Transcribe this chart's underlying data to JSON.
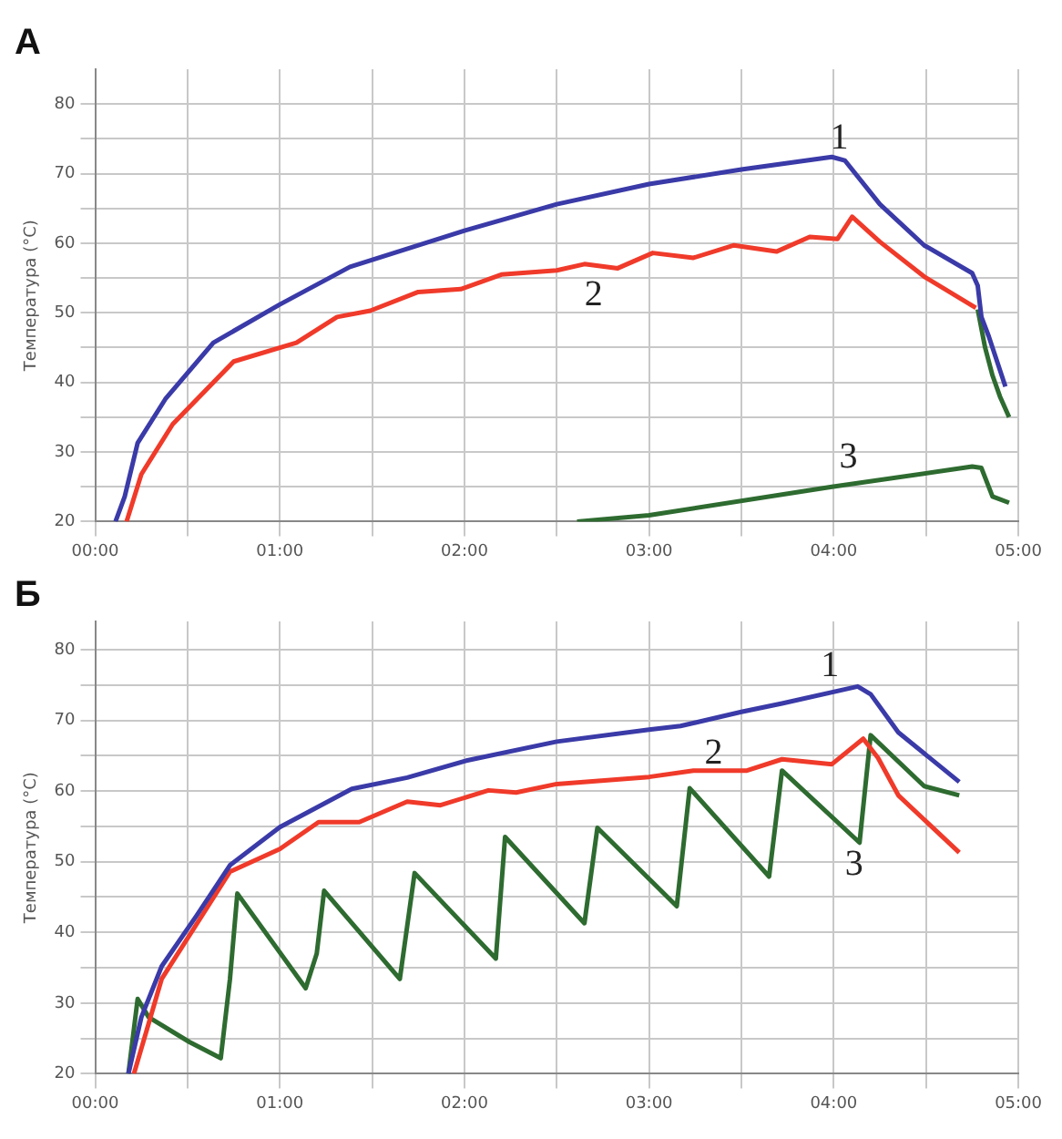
{
  "chart_data": [
    {
      "type": "line",
      "title": "А",
      "ylabel": "Температура (°C)",
      "xlim": [
        0,
        5
      ],
      "ylim": [
        20,
        85
      ],
      "xticks": [
        {
          "value": 0,
          "label": "00:00"
        },
        {
          "value": 0.5,
          "label": null
        },
        {
          "value": 1,
          "label": "01:00"
        },
        {
          "value": 1.5,
          "label": null
        },
        {
          "value": 2,
          "label": "02:00"
        },
        {
          "value": 2.5,
          "label": null
        },
        {
          "value": 3,
          "label": "03:00"
        },
        {
          "value": 3.5,
          "label": null
        },
        {
          "value": 4,
          "label": "04:00"
        },
        {
          "value": 4.5,
          "label": null
        },
        {
          "value": 5,
          "label": "05:00"
        }
      ],
      "yticks": [
        20,
        {
          "value": 25,
          "label": null
        },
        30,
        {
          "value": 35,
          "label": null
        },
        40,
        {
          "value": 45,
          "label": null
        },
        50,
        {
          "value": 55,
          "label": null
        },
        60,
        {
          "value": 65,
          "label": null
        },
        70,
        {
          "value": 75,
          "label": null
        },
        80
      ],
      "grid": true,
      "legend": false,
      "series": [
        {
          "name": "1",
          "color": "#3a3aa8",
          "x": [
            0.11,
            0.16,
            0.23,
            0.38,
            0.64,
            1.0,
            1.38,
            2.0,
            2.5,
            3.0,
            3.5,
            3.99,
            4.06,
            4.25,
            4.49,
            4.75,
            4.78,
            4.8,
            4.84,
            4.93
          ],
          "values": [
            20,
            23.6,
            31.3,
            37.6,
            45.7,
            51.2,
            56.6,
            61.8,
            65.6,
            68.5,
            70.6,
            72.4,
            71.9,
            65.6,
            59.7,
            55.7,
            53.9,
            49.4,
            46.6,
            39.4
          ]
        },
        {
          "name": "2",
          "color": "#f03a2a",
          "x": [
            0.17,
            0.25,
            0.42,
            0.75,
            1.09,
            1.31,
            1.49,
            1.75,
            1.98,
            2.2,
            2.5,
            2.65,
            2.83,
            3.02,
            3.24,
            3.46,
            3.69,
            3.87,
            4.02,
            4.1,
            4.25,
            4.49,
            4.77
          ],
          "values": [
            20,
            26.8,
            34,
            43,
            45.7,
            49.4,
            50.3,
            53,
            53.4,
            55.5,
            56.1,
            57,
            56.4,
            58.6,
            57.9,
            59.7,
            58.8,
            60.9,
            60.6,
            63.8,
            60.2,
            55.2,
            50.7
          ]
        },
        {
          "name": "3",
          "color": "#2e6b30",
          "x": [
            2.61,
            3.0,
            3.99,
            4.75,
            4.8,
            4.86,
            4.95
          ],
          "values": [
            20,
            20.9,
            25,
            27.9,
            27.7,
            23.6,
            22.7
          ]
        },
        {
          "color": "#2e6b30",
          "x": [
            4.78,
            4.82,
            4.86,
            4.9,
            4.95
          ],
          "values": [
            50.5,
            45,
            41,
            38,
            35
          ]
        }
      ]
    },
    {
      "type": "line",
      "title": "Б",
      "ylabel": "Температура (°C)",
      "xlim": [
        0,
        5
      ],
      "ylim": [
        20,
        84
      ],
      "xticks": [
        {
          "value": 0,
          "label": "00:00"
        },
        {
          "value": 0.5,
          "label": null
        },
        {
          "value": 1,
          "label": "01:00"
        },
        {
          "value": 1.5,
          "label": null
        },
        {
          "value": 2,
          "label": "02:00"
        },
        {
          "value": 2.5,
          "label": null
        },
        {
          "value": 3,
          "label": "03:00"
        },
        {
          "value": 3.5,
          "label": null
        },
        {
          "value": 4,
          "label": "04:00"
        },
        {
          "value": 4.5,
          "label": null
        },
        {
          "value": 5,
          "label": "05:00"
        }
      ],
      "yticks": [
        20,
        {
          "value": 25,
          "label": null
        },
        30,
        {
          "value": 35,
          "label": null
        },
        40,
        {
          "value": 45,
          "label": null
        },
        50,
        {
          "value": 55,
          "label": null
        },
        60,
        {
          "value": 65,
          "label": null
        },
        70,
        {
          "value": 75,
          "label": null
        },
        80
      ],
      "grid": true,
      "legend": false,
      "series": [
        {
          "name": "1",
          "color": "#3a3aa8",
          "x": [
            0.18,
            0.25,
            0.36,
            0.55,
            0.73,
            1.0,
            1.39,
            1.69,
            2.01,
            2.5,
            3.0,
            3.17,
            3.5,
            3.72,
            4.13,
            4.2,
            4.35,
            4.68
          ],
          "values": [
            20,
            28,
            35.2,
            42.4,
            49.5,
            54.9,
            60.3,
            61.9,
            64.3,
            67,
            68.7,
            69.2,
            71.2,
            72.4,
            74.8,
            73.7,
            68.3,
            61.3
          ]
        },
        {
          "name": "2",
          "color": "#f03a2a",
          "x": [
            0.21,
            0.36,
            0.73,
            1.0,
            1.21,
            1.43,
            1.69,
            1.87,
            2.13,
            2.28,
            2.5,
            3.0,
            3.24,
            3.53,
            3.72,
            3.99,
            4.16,
            4.24,
            4.35,
            4.68
          ],
          "values": [
            20,
            33.4,
            48.6,
            51.8,
            55.6,
            55.6,
            58.5,
            58,
            60.1,
            59.8,
            61,
            62,
            62.9,
            62.9,
            64.5,
            63.8,
            67.4,
            64.7,
            59.4,
            51.3
          ]
        },
        {
          "name": "3",
          "color": "#2e6b30",
          "x": [
            0.18,
            0.23,
            0.29,
            0.51,
            0.68,
            0.73,
            0.77,
            1.14,
            1.2,
            1.24,
            1.65,
            1.73,
            2.17,
            2.22,
            2.65,
            2.72,
            3.15,
            3.22,
            3.65,
            3.72,
            4.14,
            4.2,
            4.49,
            4.68
          ],
          "values": [
            20,
            30.6,
            28,
            24.5,
            22.2,
            33.4,
            45.5,
            32.1,
            37,
            45.9,
            33.4,
            48.4,
            36.3,
            53.5,
            41.3,
            54.8,
            43.7,
            60.4,
            47.9,
            62.9,
            52.7,
            67.9,
            60.7,
            59.4
          ]
        }
      ]
    }
  ]
}
